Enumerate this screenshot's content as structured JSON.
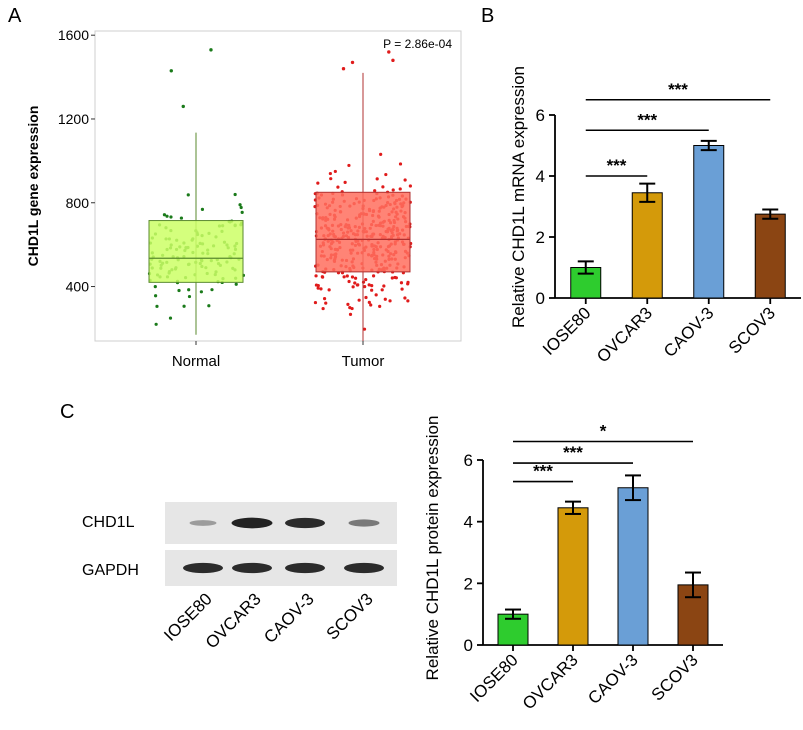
{
  "panel_labels": {
    "a": "A",
    "b": "B",
    "c": "C"
  },
  "chart_data": [
    {
      "type": "box",
      "panel": "A",
      "ylabel": "CHD1L gene expression",
      "categories": [
        "Normal",
        "Tumor"
      ],
      "yticks": [
        400,
        800,
        1200,
        1600
      ],
      "ylim": [
        140,
        1620
      ],
      "annotation": "P = 2.86e-04",
      "boxes": [
        {
          "name": "Normal",
          "whisker_low": 170,
          "q1": 420,
          "median": 535,
          "q3": 715,
          "whisker_high": 1135,
          "color": "#ccff66",
          "edge": "#5a8a2e",
          "point_color": "#1a7a1a",
          "n_points": 130,
          "outliers": [
            1530,
            1430,
            1260
          ]
        },
        {
          "name": "Tumor",
          "whisker_low": 130,
          "q1": 470,
          "median": 625,
          "q3": 850,
          "whisker_high": 1420,
          "color": "#ff6f5e",
          "edge": "#b03030",
          "point_color": "#e01b1b",
          "n_points": 380,
          "outliers": [
            1520,
            1480,
            1470,
            1440
          ]
        }
      ]
    },
    {
      "type": "bar",
      "panel": "B",
      "ylabel": "Relative CHD1L mRNA expression",
      "categories": [
        "IOSE80",
        "OVCAR3",
        "CAOV-3",
        "SCOV3"
      ],
      "values": [
        1.0,
        3.45,
        5.0,
        2.75
      ],
      "errors": [
        0.2,
        0.3,
        0.15,
        0.15
      ],
      "colors": [
        "#2ecc2e",
        "#d49a0a",
        "#6a9fd6",
        "#8b4513"
      ],
      "yticks": [
        0,
        2,
        4,
        6
      ],
      "ylim": [
        0,
        6
      ],
      "significance": [
        {
          "from": 0,
          "to": 1,
          "label": "***",
          "level": 4.0
        },
        {
          "from": 0,
          "to": 2,
          "label": "***",
          "level": 5.5
        },
        {
          "from": 0,
          "to": 3,
          "label": "***",
          "level": 6.5
        }
      ]
    },
    {
      "type": "bar",
      "panel": "C",
      "ylabel": "Relative CHD1L protein expression",
      "categories": [
        "IOSE80",
        "OVCAR3",
        "CAOV-3",
        "SCOV3"
      ],
      "values": [
        1.0,
        4.45,
        5.1,
        1.95
      ],
      "errors": [
        0.15,
        0.2,
        0.4,
        0.4
      ],
      "colors": [
        "#2ecc2e",
        "#d49a0a",
        "#6a9fd6",
        "#8b4513"
      ],
      "yticks": [
        0,
        2,
        4,
        6
      ],
      "ylim": [
        0,
        6
      ],
      "significance": [
        {
          "from": 0,
          "to": 1,
          "label": "***",
          "level": 5.3
        },
        {
          "from": 0,
          "to": 2,
          "label": "***",
          "level": 5.9
        },
        {
          "from": 0,
          "to": 3,
          "label": "*",
          "level": 6.6
        }
      ]
    }
  ],
  "western_blot": {
    "rows": [
      "CHD1L",
      "GAPDH"
    ],
    "lanes": [
      "IOSE80",
      "OVCAR3",
      "CAOV-3",
      "SCOV3"
    ],
    "intensity": [
      [
        0.25,
        0.95,
        0.9,
        0.45
      ],
      [
        0.9,
        0.9,
        0.9,
        0.9
      ]
    ]
  }
}
